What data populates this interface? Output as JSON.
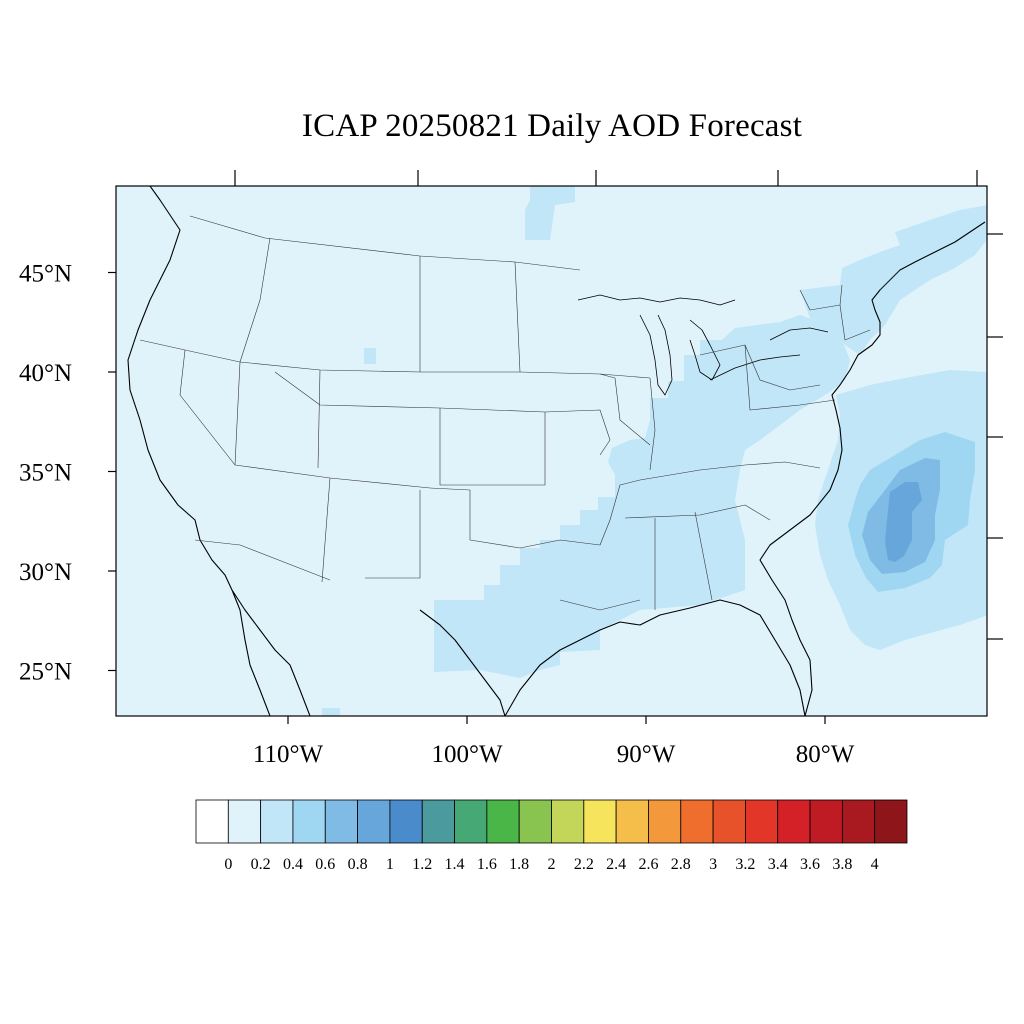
{
  "title": "ICAP 20250821 Daily AOD Forecast",
  "map": {
    "region": "Contiguous United States",
    "projection": "Lambert conformal (curved parallels)",
    "lat_labels": [
      "45°N",
      "40°N",
      "35°N",
      "30°N",
      "25°N"
    ],
    "lon_labels": [
      "110°W",
      "100°W",
      "90°W",
      "80°W"
    ],
    "latitudes": [
      45,
      40,
      35,
      30,
      25
    ],
    "longitudes": [
      -110,
      -100,
      -90,
      -80
    ],
    "background_level": "0.1-0.2",
    "aod_regions": [
      {
        "name": "Texas / Lower Mississippi plume",
        "level": "0.2-0.4"
      },
      {
        "name": "Tennessee-Ohio valley band",
        "level": "0.2-0.4"
      },
      {
        "name": "Northeast / New England",
        "level": "0.2-0.4"
      },
      {
        "name": "Atlantic offshore plume outer",
        "level": "0.2-0.4"
      },
      {
        "name": "Atlantic offshore plume middle",
        "level": "0.4-0.6"
      },
      {
        "name": "Atlantic offshore plume inner",
        "level": "0.6-0.8"
      },
      {
        "name": "Atlantic offshore plume core",
        "level": "0.8-1.0"
      }
    ]
  },
  "colorbar": {
    "labels": [
      "0",
      "0.2",
      "0.4",
      "0.6",
      "0.8",
      "1",
      "1.2",
      "1.4",
      "1.6",
      "1.8",
      "2",
      "2.2",
      "2.4",
      "2.6",
      "2.8",
      "3",
      "3.2",
      "3.4",
      "3.6",
      "3.8",
      "4"
    ],
    "colors": [
      "#ffffff",
      "#e0f3fb",
      "#c0e6f8",
      "#9fd7f3",
      "#7fbbe5",
      "#66a6da",
      "#4a8bcb",
      "#4b9a9e",
      "#46a874",
      "#4ab648",
      "#88c44f",
      "#c3d65a",
      "#f5e45c",
      "#f5be4b",
      "#f4993b",
      "#f06e2d",
      "#e8522b",
      "#e23728",
      "#d42128",
      "#bf1b25",
      "#a81a20",
      "#8e1519"
    ]
  }
}
